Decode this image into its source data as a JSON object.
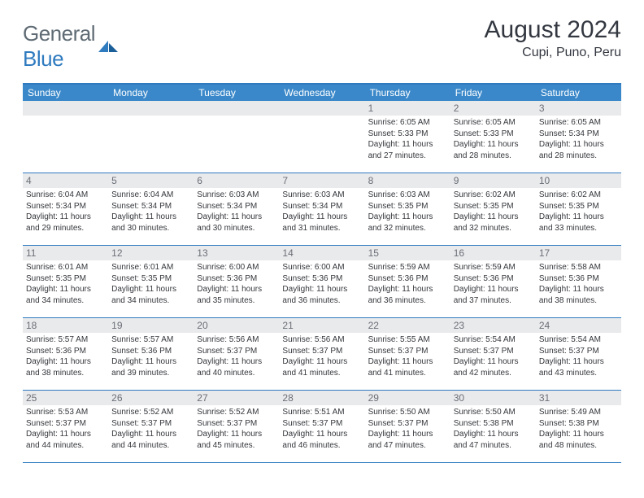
{
  "brand": {
    "part1": "General",
    "part2": "Blue"
  },
  "title": "August 2024",
  "location": "Cupi, Puno, Peru",
  "colors": {
    "header_bg": "#3a88c9",
    "accent": "#2f7bbf",
    "daynum_bg": "#e9eaec",
    "text_dark": "#333740",
    "text_muted": "#6a6e76"
  },
  "weekdays": [
    "Sunday",
    "Monday",
    "Tuesday",
    "Wednesday",
    "Thursday",
    "Friday",
    "Saturday"
  ],
  "weeks": [
    [
      {
        "n": "",
        "lines": []
      },
      {
        "n": "",
        "lines": []
      },
      {
        "n": "",
        "lines": []
      },
      {
        "n": "",
        "lines": []
      },
      {
        "n": "1",
        "lines": [
          "Sunrise: 6:05 AM",
          "Sunset: 5:33 PM",
          "Daylight: 11 hours",
          "and 27 minutes."
        ]
      },
      {
        "n": "2",
        "lines": [
          "Sunrise: 6:05 AM",
          "Sunset: 5:33 PM",
          "Daylight: 11 hours",
          "and 28 minutes."
        ]
      },
      {
        "n": "3",
        "lines": [
          "Sunrise: 6:05 AM",
          "Sunset: 5:34 PM",
          "Daylight: 11 hours",
          "and 28 minutes."
        ]
      }
    ],
    [
      {
        "n": "4",
        "lines": [
          "Sunrise: 6:04 AM",
          "Sunset: 5:34 PM",
          "Daylight: 11 hours",
          "and 29 minutes."
        ]
      },
      {
        "n": "5",
        "lines": [
          "Sunrise: 6:04 AM",
          "Sunset: 5:34 PM",
          "Daylight: 11 hours",
          "and 30 minutes."
        ]
      },
      {
        "n": "6",
        "lines": [
          "Sunrise: 6:03 AM",
          "Sunset: 5:34 PM",
          "Daylight: 11 hours",
          "and 30 minutes."
        ]
      },
      {
        "n": "7",
        "lines": [
          "Sunrise: 6:03 AM",
          "Sunset: 5:34 PM",
          "Daylight: 11 hours",
          "and 31 minutes."
        ]
      },
      {
        "n": "8",
        "lines": [
          "Sunrise: 6:03 AM",
          "Sunset: 5:35 PM",
          "Daylight: 11 hours",
          "and 32 minutes."
        ]
      },
      {
        "n": "9",
        "lines": [
          "Sunrise: 6:02 AM",
          "Sunset: 5:35 PM",
          "Daylight: 11 hours",
          "and 32 minutes."
        ]
      },
      {
        "n": "10",
        "lines": [
          "Sunrise: 6:02 AM",
          "Sunset: 5:35 PM",
          "Daylight: 11 hours",
          "and 33 minutes."
        ]
      }
    ],
    [
      {
        "n": "11",
        "lines": [
          "Sunrise: 6:01 AM",
          "Sunset: 5:35 PM",
          "Daylight: 11 hours",
          "and 34 minutes."
        ]
      },
      {
        "n": "12",
        "lines": [
          "Sunrise: 6:01 AM",
          "Sunset: 5:35 PM",
          "Daylight: 11 hours",
          "and 34 minutes."
        ]
      },
      {
        "n": "13",
        "lines": [
          "Sunrise: 6:00 AM",
          "Sunset: 5:36 PM",
          "Daylight: 11 hours",
          "and 35 minutes."
        ]
      },
      {
        "n": "14",
        "lines": [
          "Sunrise: 6:00 AM",
          "Sunset: 5:36 PM",
          "Daylight: 11 hours",
          "and 36 minutes."
        ]
      },
      {
        "n": "15",
        "lines": [
          "Sunrise: 5:59 AM",
          "Sunset: 5:36 PM",
          "Daylight: 11 hours",
          "and 36 minutes."
        ]
      },
      {
        "n": "16",
        "lines": [
          "Sunrise: 5:59 AM",
          "Sunset: 5:36 PM",
          "Daylight: 11 hours",
          "and 37 minutes."
        ]
      },
      {
        "n": "17",
        "lines": [
          "Sunrise: 5:58 AM",
          "Sunset: 5:36 PM",
          "Daylight: 11 hours",
          "and 38 minutes."
        ]
      }
    ],
    [
      {
        "n": "18",
        "lines": [
          "Sunrise: 5:57 AM",
          "Sunset: 5:36 PM",
          "Daylight: 11 hours",
          "and 38 minutes."
        ]
      },
      {
        "n": "19",
        "lines": [
          "Sunrise: 5:57 AM",
          "Sunset: 5:36 PM",
          "Daylight: 11 hours",
          "and 39 minutes."
        ]
      },
      {
        "n": "20",
        "lines": [
          "Sunrise: 5:56 AM",
          "Sunset: 5:37 PM",
          "Daylight: 11 hours",
          "and 40 minutes."
        ]
      },
      {
        "n": "21",
        "lines": [
          "Sunrise: 5:56 AM",
          "Sunset: 5:37 PM",
          "Daylight: 11 hours",
          "and 41 minutes."
        ]
      },
      {
        "n": "22",
        "lines": [
          "Sunrise: 5:55 AM",
          "Sunset: 5:37 PM",
          "Daylight: 11 hours",
          "and 41 minutes."
        ]
      },
      {
        "n": "23",
        "lines": [
          "Sunrise: 5:54 AM",
          "Sunset: 5:37 PM",
          "Daylight: 11 hours",
          "and 42 minutes."
        ]
      },
      {
        "n": "24",
        "lines": [
          "Sunrise: 5:54 AM",
          "Sunset: 5:37 PM",
          "Daylight: 11 hours",
          "and 43 minutes."
        ]
      }
    ],
    [
      {
        "n": "25",
        "lines": [
          "Sunrise: 5:53 AM",
          "Sunset: 5:37 PM",
          "Daylight: 11 hours",
          "and 44 minutes."
        ]
      },
      {
        "n": "26",
        "lines": [
          "Sunrise: 5:52 AM",
          "Sunset: 5:37 PM",
          "Daylight: 11 hours",
          "and 44 minutes."
        ]
      },
      {
        "n": "27",
        "lines": [
          "Sunrise: 5:52 AM",
          "Sunset: 5:37 PM",
          "Daylight: 11 hours",
          "and 45 minutes."
        ]
      },
      {
        "n": "28",
        "lines": [
          "Sunrise: 5:51 AM",
          "Sunset: 5:37 PM",
          "Daylight: 11 hours",
          "and 46 minutes."
        ]
      },
      {
        "n": "29",
        "lines": [
          "Sunrise: 5:50 AM",
          "Sunset: 5:37 PM",
          "Daylight: 11 hours",
          "and 47 minutes."
        ]
      },
      {
        "n": "30",
        "lines": [
          "Sunrise: 5:50 AM",
          "Sunset: 5:38 PM",
          "Daylight: 11 hours",
          "and 47 minutes."
        ]
      },
      {
        "n": "31",
        "lines": [
          "Sunrise: 5:49 AM",
          "Sunset: 5:38 PM",
          "Daylight: 11 hours",
          "and 48 minutes."
        ]
      }
    ]
  ]
}
